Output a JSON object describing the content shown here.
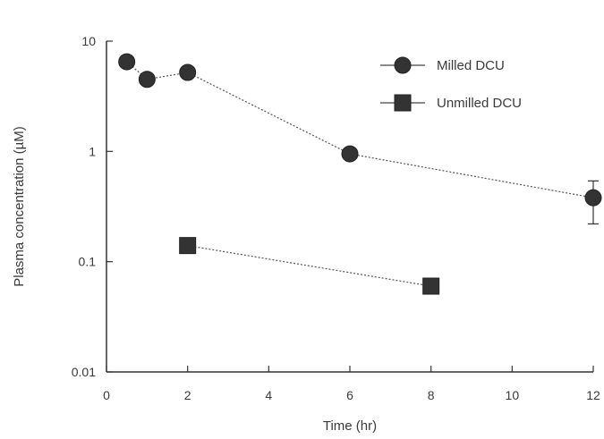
{
  "chart_data": {
    "type": "scatter",
    "title": "",
    "xlabel": "Time (hr)",
    "ylabel": "Plasma concentration (µM)",
    "xlim": [
      0,
      12
    ],
    "ylim": [
      0.01,
      10
    ],
    "yscale": "log",
    "grid": false,
    "legend_position": "top-right",
    "x_ticks": [
      0,
      2,
      4,
      6,
      8,
      10,
      12
    ],
    "x_tick_labels": [
      "0",
      "2",
      "4",
      "6",
      "8",
      "10",
      "12"
    ],
    "y_ticks": [
      0.01,
      0.1,
      1,
      10
    ],
    "y_tick_labels": [
      "0.01",
      "0.1",
      "1",
      "10"
    ],
    "series": [
      {
        "name": "Milled DCU",
        "marker": "circle",
        "color": "#333333",
        "points": [
          {
            "x": 0.5,
            "y": 6.5
          },
          {
            "x": 1,
            "y": 4.5
          },
          {
            "x": 2,
            "y": 5.2
          },
          {
            "x": 6,
            "y": 0.95
          },
          {
            "x": 12,
            "y": 0.38,
            "err_low": 0.22,
            "err_high": 0.54
          }
        ]
      },
      {
        "name": "Unmilled DCU",
        "marker": "square",
        "color": "#333333",
        "points": [
          {
            "x": 2,
            "y": 0.14
          },
          {
            "x": 8,
            "y": 0.06
          }
        ]
      }
    ]
  }
}
